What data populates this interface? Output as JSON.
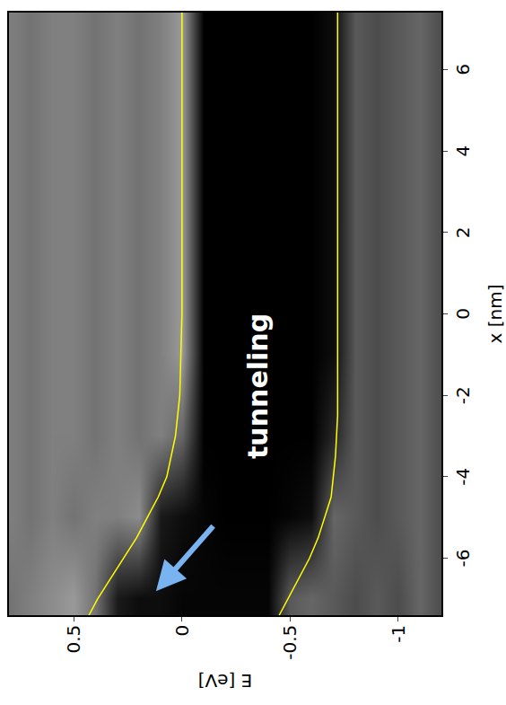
{
  "chart_data": {
    "type": "heatmap",
    "x_label": "x [nm]",
    "y_label": "E [eV]",
    "xlim": [
      -7.4,
      7.4
    ],
    "ylim": [
      -1.2,
      0.8
    ],
    "xticks": [
      -6,
      -4,
      -2,
      0,
      2,
      4,
      6
    ],
    "yticks": [
      -1,
      -0.5,
      0,
      0.5
    ],
    "grid": false,
    "heatmap": {
      "x": [
        -7,
        -5,
        -3,
        -1,
        1,
        3,
        5,
        7
      ],
      "y": [
        -1.2,
        -1.1,
        -1.0,
        -0.9,
        -0.8,
        -0.7,
        -0.6,
        -0.5,
        -0.4,
        -0.3,
        -0.2,
        -0.1,
        0.0,
        0.1,
        0.2,
        0.3,
        0.4,
        0.5,
        0.6,
        0.7,
        0.8
      ],
      "zlim": [
        0,
        1
      ],
      "z": [
        [
          0.3,
          0.3,
          0.3,
          0.3,
          0.3,
          0.3,
          0.3,
          0.3
        ],
        [
          0.4,
          0.4,
          0.4,
          0.4,
          0.4,
          0.4,
          0.4,
          0.4
        ],
        [
          0.3,
          0.35,
          0.35,
          0.35,
          0.35,
          0.35,
          0.35,
          0.35
        ],
        [
          0.35,
          0.3,
          0.3,
          0.3,
          0.3,
          0.3,
          0.3,
          0.3
        ],
        [
          0.3,
          0.35,
          0.35,
          0.35,
          0.35,
          0.35,
          0.35,
          0.35
        ],
        [
          0.35,
          0.4,
          0.15,
          0.05,
          0.05,
          0.05,
          0.05,
          0.05
        ],
        [
          0.4,
          0.05,
          0,
          0,
          0,
          0,
          0,
          0
        ],
        [
          0.35,
          0.02,
          0,
          0,
          0,
          0,
          0,
          0
        ],
        [
          0.02,
          0,
          0,
          0,
          0,
          0,
          0,
          0
        ],
        [
          0.02,
          0,
          0,
          0,
          0,
          0,
          0,
          0
        ],
        [
          0.02,
          0,
          0,
          0,
          0,
          0,
          0,
          0
        ],
        [
          0.02,
          0.02,
          0,
          0,
          0,
          0,
          0,
          0
        ],
        [
          0.02,
          0.05,
          0.4,
          0.6,
          0.6,
          0.6,
          0.6,
          0.6
        ],
        [
          0.05,
          0.1,
          0.5,
          0.5,
          0.5,
          0.5,
          0.5,
          0.5
        ],
        [
          0.05,
          0.55,
          0.45,
          0.45,
          0.45,
          0.45,
          0.45,
          0.45
        ],
        [
          0.1,
          0.5,
          0.5,
          0.5,
          0.5,
          0.5,
          0.5,
          0.5
        ],
        [
          0.45,
          0.5,
          0.45,
          0.45,
          0.45,
          0.45,
          0.45,
          0.45
        ],
        [
          0.6,
          0.45,
          0.5,
          0.5,
          0.5,
          0.5,
          0.5,
          0.5
        ],
        [
          0.55,
          0.5,
          0.5,
          0.5,
          0.5,
          0.5,
          0.5,
          0.5
        ],
        [
          0.5,
          0.45,
          0.45,
          0.45,
          0.45,
          0.45,
          0.45,
          0.45
        ],
        [
          0.45,
          0.5,
          0.5,
          0.5,
          0.5,
          0.5,
          0.5,
          0.5
        ]
      ]
    },
    "x": [
      -7.4,
      -7,
      -6.5,
      -6,
      -5.5,
      -5,
      -4.5,
      -4,
      -3.5,
      -3,
      -2.5,
      -2,
      -1,
      0,
      2,
      4,
      6,
      7.4
    ],
    "series": [
      {
        "type": "line",
        "color": "#ffff00",
        "values": [
          0.43,
          0.39,
          0.33,
          0.27,
          0.21,
          0.16,
          0.11,
          0.07,
          0.05,
          0.03,
          0.02,
          0.01,
          0.005,
          0,
          0,
          0,
          0,
          0
        ]
      },
      {
        "type": "line",
        "color": "#ffff00",
        "values": [
          -0.45,
          -0.49,
          -0.54,
          -0.59,
          -0.63,
          -0.66,
          -0.69,
          -0.7,
          -0.71,
          -0.715,
          -0.72,
          -0.72,
          -0.72,
          -0.72,
          -0.72,
          -0.72,
          -0.72,
          -0.72
        ]
      }
    ],
    "annotations": [
      {
        "text": "tunneling"
      }
    ]
  }
}
